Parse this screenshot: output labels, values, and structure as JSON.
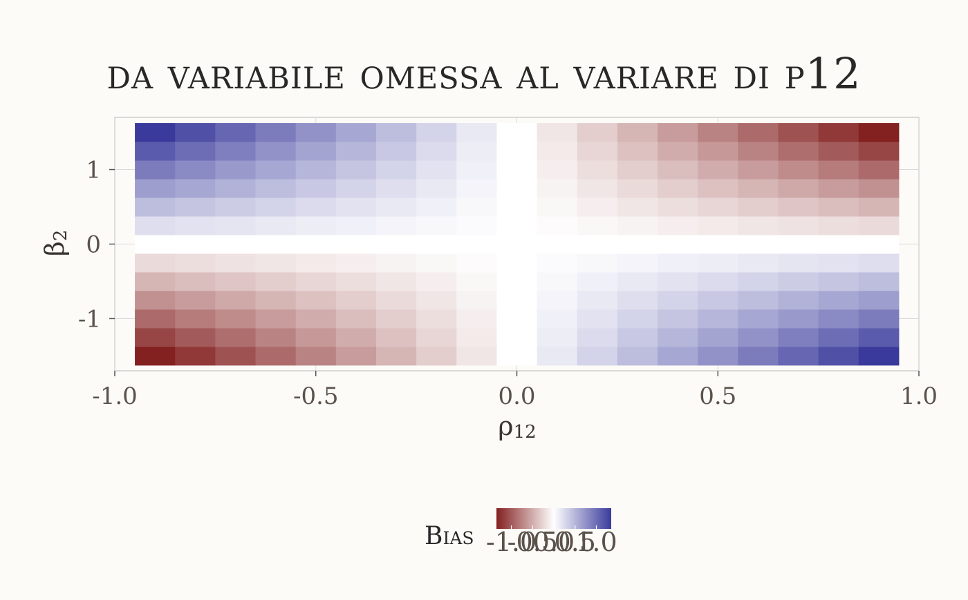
{
  "chart_data": {
    "type": "heatmap",
    "title": "da variabile omessa al variare di ρ12",
    "xlabel": "ρ",
    "xlabel_sub": "12",
    "ylabel": "β",
    "ylabel_sub": "2",
    "x": [
      -0.9,
      -0.8,
      -0.7,
      -0.6,
      -0.5,
      -0.4,
      -0.3,
      -0.2,
      -0.1,
      0.0,
      0.1,
      0.2,
      0.3,
      0.4,
      0.5,
      0.6,
      0.7,
      0.8,
      0.9
    ],
    "y": [
      -1.5,
      -1.25,
      -1.0,
      -0.75,
      -0.5,
      -0.25,
      0.0,
      0.25,
      0.5,
      0.75,
      1.0,
      1.25,
      1.5
    ],
    "value_model": "bias = -rho12 * beta2",
    "xlim": [
      -1.0,
      1.0
    ],
    "ylim": [
      -1.7,
      1.7
    ],
    "x_ticks": [
      -1.0,
      -0.5,
      0.0,
      0.5,
      1.0
    ],
    "x_tick_labels": [
      "-1.0",
      "-0.5",
      "0.0",
      "0.5",
      "1.0"
    ],
    "y_ticks": [
      -1,
      0,
      1
    ],
    "y_tick_labels": [
      "-1",
      "0",
      "1"
    ],
    "grid": true,
    "legend": {
      "title": "Bias",
      "placement": "bottom",
      "tick_labels": [
        "-1.0",
        "-0.5",
        "0.0",
        "0.5",
        "1.0"
      ],
      "range": [
        -1.35,
        1.35
      ]
    },
    "colors": {
      "low": "#832020",
      "mid": "#ffffff",
      "high": "#3a3a9c",
      "background": "#fcfbf7",
      "panel_border": "#cccccc",
      "grid": "#d9d9d9"
    }
  }
}
